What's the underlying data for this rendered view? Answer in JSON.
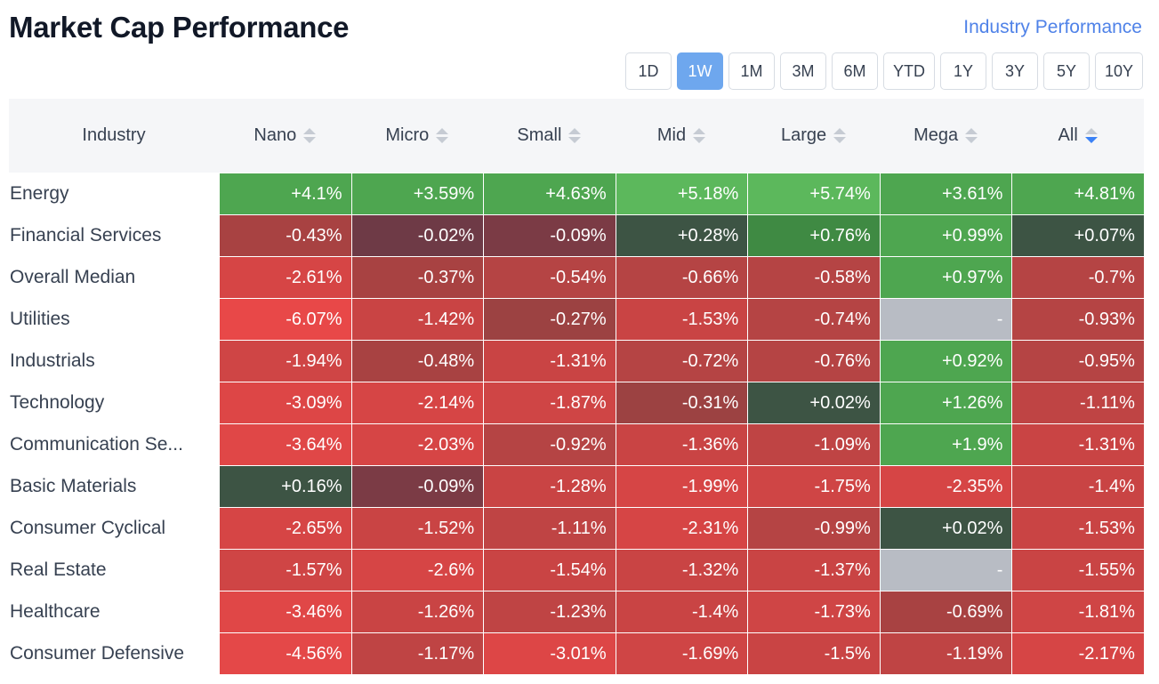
{
  "header": {
    "title": "Market Cap Performance",
    "link": "Industry Performance"
  },
  "periods": {
    "options": [
      "1D",
      "1W",
      "1M",
      "3M",
      "6M",
      "YTD",
      "1Y",
      "3Y",
      "5Y",
      "10Y"
    ],
    "selected": "1W"
  },
  "table": {
    "industry_header": "Industry",
    "columns": [
      "Nano",
      "Micro",
      "Small",
      "Mid",
      "Large",
      "Mega",
      "All"
    ],
    "sorted_column": "All",
    "rows": [
      {
        "industry": "Energy",
        "values": [
          "+4.1%",
          "+3.59%",
          "+4.63%",
          "+5.18%",
          "+5.74%",
          "+3.61%",
          "+4.81%"
        ],
        "colors": [
          "#4ea650",
          "#4ea650",
          "#4ea650",
          "#5cb85c",
          "#5cb85c",
          "#4ea650",
          "#4ea650"
        ]
      },
      {
        "industry": "Financial Services",
        "values": [
          "-0.43%",
          "-0.02%",
          "-0.09%",
          "+0.28%",
          "+0.76%",
          "+0.99%",
          "+0.07%"
        ],
        "colors": [
          "#a84242",
          "#6e3a46",
          "#7b3b45",
          "#3d5444",
          "#3f8a43",
          "#4ea650",
          "#3d5444"
        ]
      },
      {
        "industry": "Overall Median",
        "values": [
          "-2.61%",
          "-0.37%",
          "-0.54%",
          "-0.66%",
          "-0.58%",
          "+0.97%",
          "-0.7%"
        ],
        "colors": [
          "#d64545",
          "#a84242",
          "#b54444",
          "#b54444",
          "#b54444",
          "#4ea650",
          "#b54444"
        ]
      },
      {
        "industry": "Utilities",
        "values": [
          "-6.07%",
          "-1.42%",
          "-0.27%",
          "-1.53%",
          "-0.74%",
          "-",
          "-0.93%"
        ],
        "colors": [
          "#e84848",
          "#c94444",
          "#9c4242",
          "#c94444",
          "#b54444",
          "#b8bcc4",
          "#b54444"
        ]
      },
      {
        "industry": "Industrials",
        "values": [
          "-1.94%",
          "-0.48%",
          "-1.31%",
          "-0.72%",
          "-0.76%",
          "+0.92%",
          "-0.95%"
        ],
        "colors": [
          "#cf4545",
          "#a84242",
          "#c94444",
          "#b54444",
          "#b54444",
          "#4ea650",
          "#b54444"
        ]
      },
      {
        "industry": "Technology",
        "values": [
          "-3.09%",
          "-2.14%",
          "-1.87%",
          "-0.31%",
          "+0.02%",
          "+1.26%",
          "-1.11%"
        ],
        "colors": [
          "#dd4646",
          "#d64545",
          "#cf4545",
          "#9c4242",
          "#3d5444",
          "#4ea650",
          "#bf4444"
        ]
      },
      {
        "industry": "Communication Se...",
        "values": [
          "-3.64%",
          "-2.03%",
          "-0.92%",
          "-1.36%",
          "-1.09%",
          "+1.9%",
          "-1.31%"
        ],
        "colors": [
          "#e04747",
          "#d64545",
          "#b54444",
          "#c94444",
          "#bf4444",
          "#4ea650",
          "#c94444"
        ]
      },
      {
        "industry": "Basic Materials",
        "values": [
          "+0.16%",
          "-0.09%",
          "-1.28%",
          "-1.99%",
          "-1.75%",
          "-2.35%",
          "-1.4%"
        ],
        "colors": [
          "#3d5444",
          "#7b3b45",
          "#c94444",
          "#d64545",
          "#cf4545",
          "#d64545",
          "#c94444"
        ]
      },
      {
        "industry": "Consumer Cyclical",
        "values": [
          "-2.65%",
          "-1.52%",
          "-1.11%",
          "-2.31%",
          "-0.99%",
          "+0.02%",
          "-1.53%"
        ],
        "colors": [
          "#d64545",
          "#c94444",
          "#bf4444",
          "#d64545",
          "#b54444",
          "#3d5444",
          "#c94444"
        ]
      },
      {
        "industry": "Real Estate",
        "values": [
          "-1.57%",
          "-2.6%",
          "-1.54%",
          "-1.32%",
          "-1.37%",
          "-",
          "-1.55%"
        ],
        "colors": [
          "#cf4545",
          "#d64545",
          "#c94444",
          "#c94444",
          "#c94444",
          "#b8bcc4",
          "#c94444"
        ]
      },
      {
        "industry": "Healthcare",
        "values": [
          "-3.46%",
          "-1.26%",
          "-1.23%",
          "-1.4%",
          "-1.73%",
          "-0.69%",
          "-1.81%"
        ],
        "colors": [
          "#e04747",
          "#c94444",
          "#bf4444",
          "#c94444",
          "#cf4545",
          "#a84242",
          "#cf4545"
        ]
      },
      {
        "industry": "Consumer Defensive",
        "values": [
          "-4.56%",
          "-1.17%",
          "-3.01%",
          "-1.69%",
          "-1.5%",
          "-1.19%",
          "-2.17%"
        ],
        "colors": [
          "#e44848",
          "#bf4444",
          "#dd4646",
          "#cf4545",
          "#c94444",
          "#bf4444",
          "#d64545"
        ]
      }
    ]
  }
}
